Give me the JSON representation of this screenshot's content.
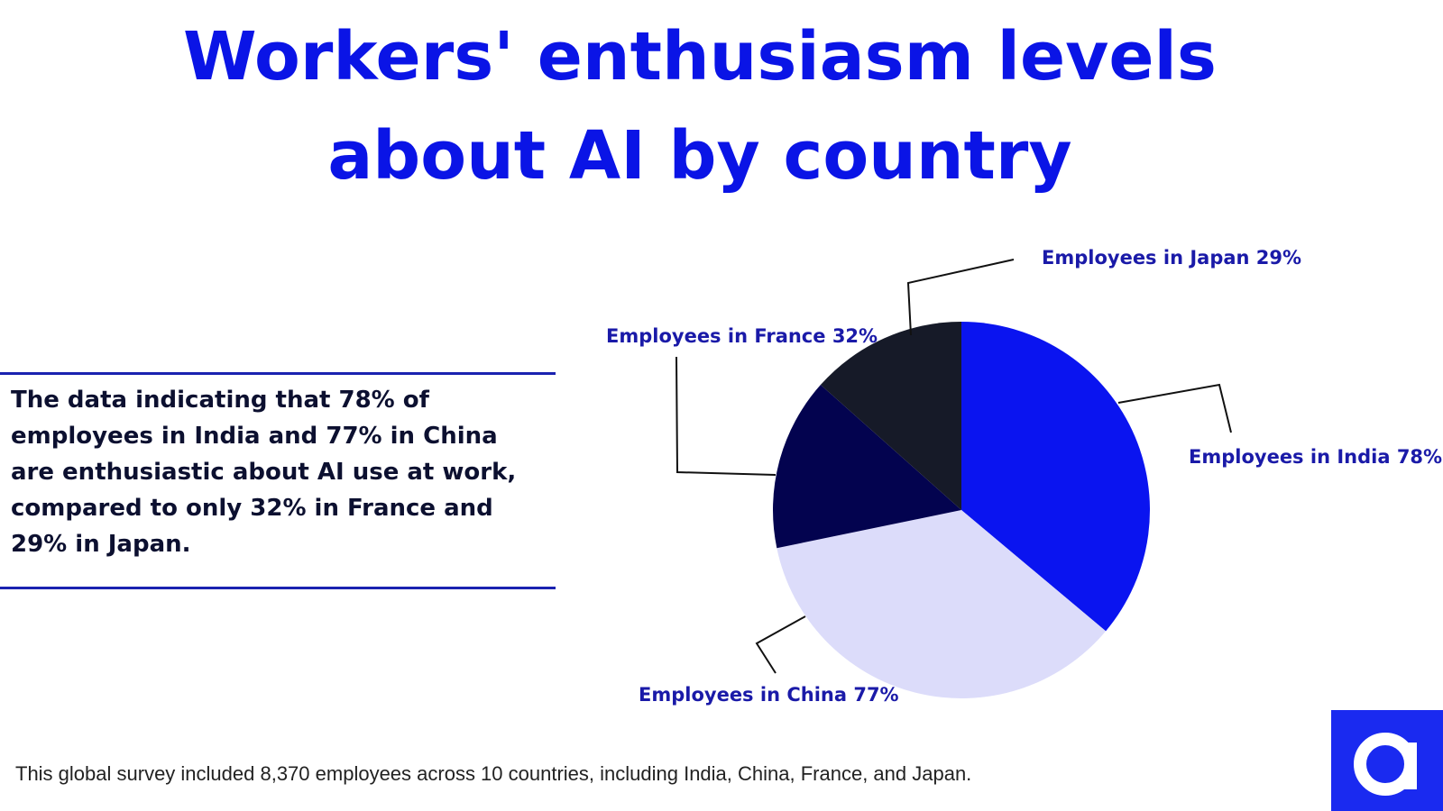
{
  "chart_data": {
    "type": "pie",
    "title": "Workers' enthusiasm levels about AI by country",
    "categories": [
      "Employees in India",
      "Employees in China",
      "Employees in France",
      "Employees in Japan"
    ],
    "values": [
      78,
      77,
      32,
      29
    ],
    "value_labels": [
      "78%",
      "77%",
      "32%",
      "29%"
    ],
    "colors": [
      "#0a14f0",
      "#dcdcfa",
      "#03034f",
      "#161a28"
    ],
    "description": "The data indicating that 78% of employees in India and 77% in China are enthusiastic about AI use at work, compared to only 32% in France and 29% in Japan.",
    "footnote": "This global survey included 8,370 employees across 10 countries, including India, China, France, and Japan."
  }
}
